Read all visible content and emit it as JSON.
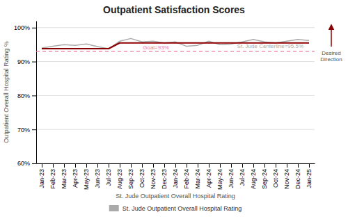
{
  "chart_data": {
    "type": "line",
    "title": "Outpatient Satisfaction Scores",
    "x_label": "St. Jude Outpatient Overall Hospital Rating",
    "y_label": "Outpatient Overall Hospital Rating %",
    "categories": [
      "Jan-23",
      "Feb-23",
      "Mar-23",
      "Apr-23",
      "May-23",
      "Jun-23",
      "Jul-23",
      "Aug-23",
      "Sep-23",
      "Oct-23",
      "Nov-23",
      "Dec-23",
      "Jan-24",
      "Feb-24",
      "Mar-24",
      "Apr-24",
      "May-24",
      "Jun-24",
      "Jul-24",
      "Aug-24",
      "Sep-24",
      "Oct-24",
      "Nov-24",
      "Dec-24",
      "Jan-25"
    ],
    "series": [
      {
        "name": "St. Jude Outpatient Overall Hospital Rating",
        "color": "#aaaaaa",
        "values": [
          0.94,
          0.945,
          0.95,
          0.948,
          0.952,
          0.944,
          0.938,
          0.96,
          0.968,
          0.958,
          0.96,
          0.955,
          0.958,
          0.945,
          0.948,
          0.96,
          0.95,
          0.952,
          0.958,
          0.965,
          0.958,
          0.955,
          0.96,
          0.965,
          0.962
        ]
      },
      {
        "color": "#8b0000",
        "values": [
          0.938,
          0.938,
          0.938,
          0.938,
          0.938,
          0.938,
          0.938,
          0.955,
          0.955,
          0.955,
          0.955,
          0.955,
          0.955,
          0.955,
          0.955,
          0.955,
          0.955,
          0.955,
          0.955,
          0.955,
          0.955,
          0.955,
          0.955,
          0.955,
          0.955
        ]
      }
    ],
    "ylim": [
      0.6,
      1.02
    ],
    "yticks": [
      {
        "value": 0.6,
        "label": "60%"
      },
      {
        "value": 0.7,
        "label": "70%"
      },
      {
        "value": 0.8,
        "label": "80%"
      },
      {
        "value": 0.9,
        "label": "90%"
      },
      {
        "value": 1.0,
        "label": "100%"
      }
    ],
    "grid": true,
    "legend": "bottom",
    "annotations": [
      {
        "type": "hline",
        "y": 0.93,
        "text": "Goal=93%",
        "color": "#e87da0",
        "line_style": "dashed"
      },
      {
        "type": "text",
        "y": 0.955,
        "text": "St. Jude Centerline=95.5%",
        "color": "#aaaaaa"
      },
      {
        "type": "arrow",
        "text": "Desired\nDirection",
        "color": "#8b0000"
      }
    ]
  }
}
